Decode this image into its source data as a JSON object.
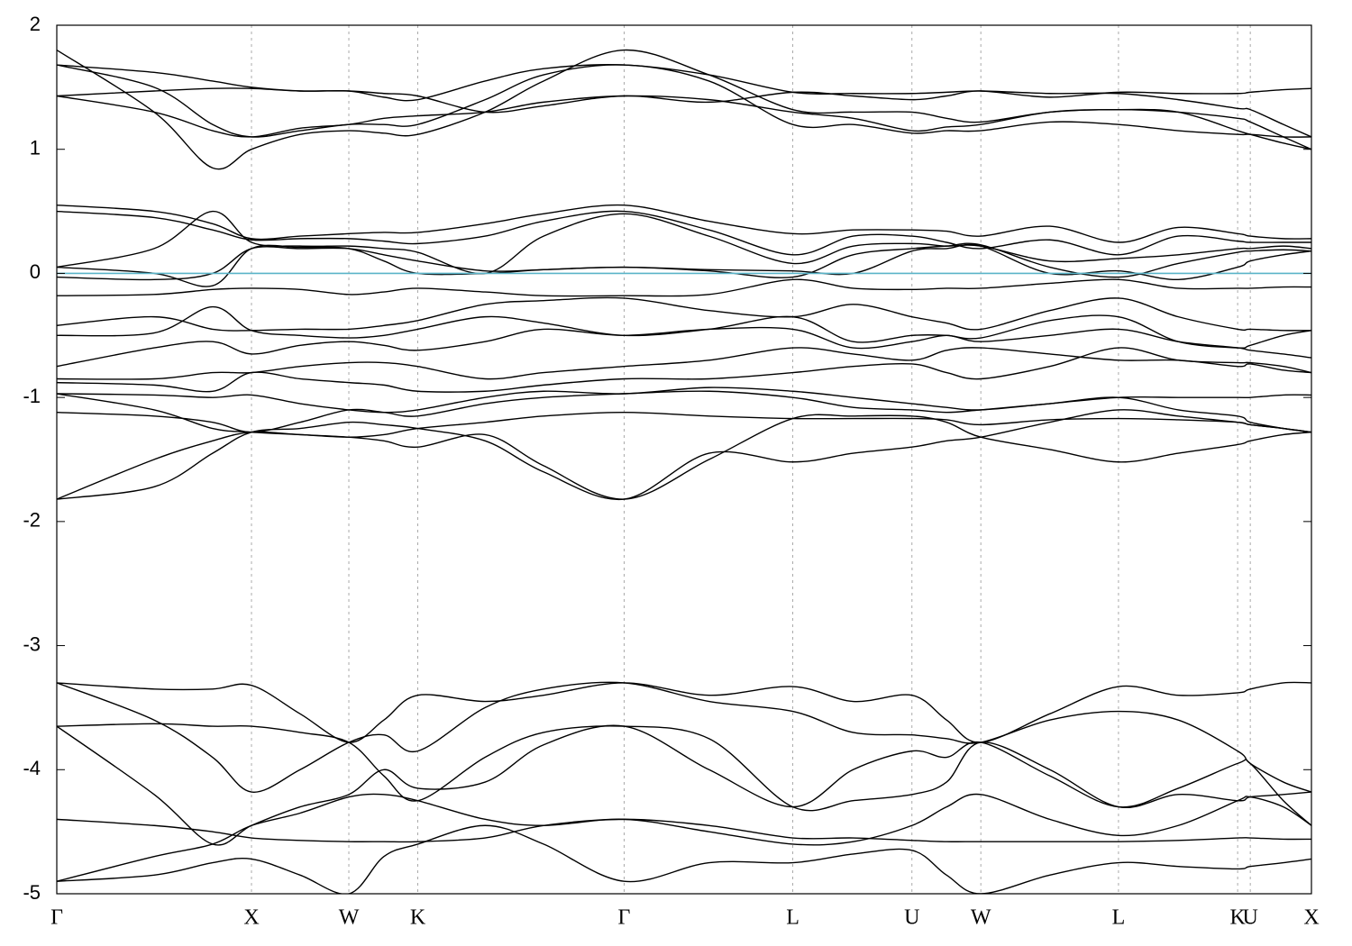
{
  "chart_data": {
    "type": "line",
    "x": [
      0,
      0.5,
      0.8,
      1,
      1.25,
      1.5,
      1.68,
      1.854,
      2.2,
      2.5,
      2.914,
      3.35,
      3.78,
      4.09,
      4.392,
      4.57,
      4.746,
      5.1,
      5.453,
      5.76,
      6.065,
      6.13,
      6.3,
      6.444
    ],
    "xlim": [
      0,
      6.444
    ],
    "xticks": [
      {
        "value": 0,
        "label": "Γ"
      },
      {
        "value": 1,
        "label": "X"
      },
      {
        "value": 1.5,
        "label": "W"
      },
      {
        "value": 1.854,
        "label": "K"
      },
      {
        "value": 2.914,
        "label": "Γ"
      },
      {
        "value": 3.78,
        "label": "L"
      },
      {
        "value": 4.392,
        "label": "U"
      },
      {
        "value": 4.746,
        "label": "W"
      },
      {
        "value": 5.453,
        "label": "L"
      },
      {
        "value": 6.065,
        "label": "K"
      },
      {
        "value": 6.13,
        "label": "U"
      },
      {
        "value": 6.444,
        "label": "X"
      }
    ],
    "ylim": [
      -5,
      2
    ],
    "yticks": [
      -5,
      -4,
      -3,
      -2,
      -1,
      0,
      1,
      2
    ],
    "x_grid": true,
    "fermi_level": 0,
    "fermi_color": "#5ab4c8",
    "series": [
      {
        "color": "#000000",
        "values": [
          1.8,
          1.3,
          0.85,
          1.0,
          1.12,
          1.15,
          1.13,
          1.12,
          1.3,
          1.55,
          1.8,
          1.6,
          1.32,
          1.3,
          1.3,
          1.25,
          1.22,
          1.3,
          1.32,
          1.3,
          1.15,
          1.12,
          1.05,
          1.0
        ]
      },
      {
        "color": "#000000",
        "values": [
          1.68,
          1.5,
          1.2,
          1.1,
          1.15,
          1.2,
          1.2,
          1.2,
          1.4,
          1.6,
          1.68,
          1.55,
          1.2,
          1.2,
          1.13,
          1.15,
          1.15,
          1.22,
          1.2,
          1.15,
          1.12,
          1.12,
          1.1,
          1.1
        ]
      },
      {
        "color": "#000000",
        "values": [
          1.43,
          1.3,
          1.15,
          1.1,
          1.17,
          1.2,
          1.25,
          1.27,
          1.3,
          1.38,
          1.43,
          1.4,
          1.3,
          1.25,
          1.15,
          1.18,
          1.2,
          1.3,
          1.32,
          1.3,
          1.25,
          1.22,
          1.1,
          1.0
        ]
      },
      {
        "color": "#000000",
        "values": [
          1.43,
          1.47,
          1.49,
          1.49,
          1.47,
          1.47,
          1.45,
          1.43,
          1.3,
          1.35,
          1.43,
          1.38,
          1.46,
          1.43,
          1.4,
          1.43,
          1.47,
          1.42,
          1.46,
          1.45,
          1.45,
          1.46,
          1.48,
          1.49
        ]
      },
      {
        "color": "#000000",
        "values": [
          1.68,
          1.62,
          1.55,
          1.5,
          1.47,
          1.47,
          1.42,
          1.4,
          1.55,
          1.65,
          1.68,
          1.6,
          1.46,
          1.45,
          1.45,
          1.46,
          1.47,
          1.45,
          1.45,
          1.4,
          1.33,
          1.32,
          1.2,
          1.1
        ]
      },
      {
        "color": "#000000",
        "values": [
          0.55,
          0.5,
          0.4,
          0.28,
          0.3,
          0.32,
          0.33,
          0.33,
          0.4,
          0.48,
          0.55,
          0.42,
          0.32,
          0.35,
          0.35,
          0.34,
          0.3,
          0.38,
          0.25,
          0.37,
          0.32,
          0.3,
          0.28,
          0.28
        ]
      },
      {
        "color": "#000000",
        "values": [
          0.5,
          0.45,
          0.35,
          0.27,
          0.28,
          0.28,
          0.26,
          0.24,
          0.3,
          0.42,
          0.5,
          0.35,
          0.15,
          0.3,
          0.3,
          0.25,
          0.2,
          0.27,
          0.15,
          0.3,
          0.26,
          0.25,
          0.25,
          0.25
        ]
      },
      {
        "color": "#000000",
        "values": [
          0.05,
          0.2,
          0.5,
          0.25,
          0.22,
          0.22,
          0.2,
          0.17,
          0.0,
          0.3,
          0.48,
          0.3,
          0.08,
          0.22,
          0.24,
          0.22,
          0.22,
          0.1,
          0.12,
          0.15,
          0.2,
          0.2,
          0.22,
          0.2
        ]
      },
      {
        "color": "#000000",
        "values": [
          -0.03,
          -0.05,
          0.0,
          0.2,
          0.2,
          0.2,
          0.15,
          0.1,
          0.02,
          0.03,
          0.05,
          0.02,
          -0.03,
          0.15,
          0.2,
          0.22,
          0.23,
          0.05,
          -0.03,
          0.08,
          0.17,
          0.18,
          0.19,
          0.18
        ]
      },
      {
        "color": "#000000",
        "values": [
          0.05,
          0.0,
          -0.1,
          0.2,
          0.21,
          0.2,
          0.1,
          0.0,
          0.0,
          0.03,
          0.05,
          0.03,
          0.02,
          0.0,
          0.18,
          0.2,
          0.22,
          0.0,
          0.02,
          -0.05,
          0.05,
          0.1,
          0.15,
          0.18
        ]
      },
      {
        "color": "#000000",
        "values": [
          -0.18,
          -0.17,
          -0.13,
          -0.12,
          -0.13,
          -0.17,
          -0.15,
          -0.12,
          -0.15,
          -0.18,
          -0.18,
          -0.17,
          -0.05,
          -0.12,
          -0.13,
          -0.12,
          -0.12,
          -0.08,
          -0.05,
          -0.12,
          -0.12,
          -0.12,
          -0.11,
          -0.11
        ]
      },
      {
        "color": "#000000",
        "values": [
          -0.42,
          -0.35,
          -0.45,
          -0.46,
          -0.45,
          -0.45,
          -0.42,
          -0.38,
          -0.25,
          -0.22,
          -0.2,
          -0.3,
          -0.35,
          -0.25,
          -0.35,
          -0.4,
          -0.45,
          -0.3,
          -0.2,
          -0.35,
          -0.45,
          -0.45,
          -0.46,
          -0.46
        ]
      },
      {
        "color": "#000000",
        "values": [
          -0.5,
          -0.48,
          -0.27,
          -0.46,
          -0.5,
          -0.52,
          -0.5,
          -0.45,
          -0.35,
          -0.4,
          -0.5,
          -0.45,
          -0.35,
          -0.55,
          -0.5,
          -0.5,
          -0.52,
          -0.38,
          -0.35,
          -0.55,
          -0.6,
          -0.58,
          -0.5,
          -0.46
        ]
      },
      {
        "color": "#000000",
        "values": [
          -0.75,
          -0.6,
          -0.55,
          -0.65,
          -0.58,
          -0.55,
          -0.58,
          -0.62,
          -0.55,
          -0.45,
          -0.5,
          -0.45,
          -0.45,
          -0.6,
          -0.55,
          -0.5,
          -0.55,
          -0.5,
          -0.45,
          -0.55,
          -0.6,
          -0.62,
          -0.65,
          -0.68
        ]
      },
      {
        "color": "#000000",
        "values": [
          -0.85,
          -0.85,
          -0.8,
          -0.8,
          -0.75,
          -0.72,
          -0.72,
          -0.75,
          -0.85,
          -0.8,
          -0.75,
          -0.7,
          -0.6,
          -0.65,
          -0.7,
          -0.62,
          -0.6,
          -0.65,
          -0.7,
          -0.7,
          -0.75,
          -0.73,
          -0.78,
          -0.8
        ]
      },
      {
        "color": "#000000",
        "values": [
          -0.88,
          -0.9,
          -0.95,
          -0.8,
          -0.85,
          -0.88,
          -0.9,
          -0.95,
          -0.95,
          -0.9,
          -0.85,
          -0.85,
          -0.8,
          -0.75,
          -0.73,
          -0.8,
          -0.85,
          -0.75,
          -0.6,
          -0.7,
          -0.72,
          -0.72,
          -0.75,
          -0.8
        ]
      },
      {
        "color": "#000000",
        "values": [
          -0.97,
          -0.98,
          -1.0,
          -0.98,
          -1.05,
          -1.1,
          -1.12,
          -1.1,
          -1.0,
          -0.95,
          -0.97,
          -0.92,
          -0.95,
          -1.0,
          -1.05,
          -1.08,
          -1.1,
          -1.05,
          -1.0,
          -1.0,
          -1.0,
          -1.0,
          -0.98,
          -0.98
        ]
      },
      {
        "color": "#000000",
        "values": [
          -1.12,
          -1.15,
          -1.2,
          -1.28,
          -1.2,
          -1.1,
          -1.12,
          -1.15,
          -1.05,
          -1.0,
          -0.97,
          -0.95,
          -1.0,
          -1.08,
          -1.1,
          -1.12,
          -1.1,
          -1.05,
          -1.0,
          -1.1,
          -1.15,
          -1.2,
          -1.25,
          -1.28
        ]
      },
      {
        "color": "#000000",
        "values": [
          -0.97,
          -1.1,
          -1.25,
          -1.28,
          -1.3,
          -1.32,
          -1.3,
          -1.25,
          -1.2,
          -1.15,
          -1.12,
          -1.15,
          -1.17,
          -1.17,
          -1.17,
          -1.18,
          -1.22,
          -1.18,
          -1.17,
          -1.18,
          -1.2,
          -1.22,
          -1.25,
          -1.28
        ]
      },
      {
        "color": "#000000",
        "values": [
          -1.82,
          -1.5,
          -1.35,
          -1.28,
          -1.3,
          -1.32,
          -1.35,
          -1.4,
          -1.3,
          -1.55,
          -1.82,
          -1.5,
          -1.17,
          -1.15,
          -1.15,
          -1.2,
          -1.32,
          -1.42,
          -1.52,
          -1.45,
          -1.38,
          -1.35,
          -1.3,
          -1.28
        ]
      },
      {
        "color": "#000000",
        "values": [
          -1.82,
          -1.72,
          -1.45,
          -1.28,
          -1.25,
          -1.2,
          -1.22,
          -1.25,
          -1.35,
          -1.6,
          -1.82,
          -1.45,
          -1.52,
          -1.45,
          -1.4,
          -1.35,
          -1.32,
          -1.2,
          -1.1,
          -1.15,
          -1.2,
          -1.22,
          -1.25,
          -1.28
        ]
      },
      {
        "color": "#000000",
        "values": [
          -3.3,
          -3.35,
          -3.35,
          -3.32,
          -3.55,
          -3.78,
          -3.6,
          -3.4,
          -3.45,
          -3.4,
          -3.3,
          -3.4,
          -3.33,
          -3.45,
          -3.4,
          -3.6,
          -3.78,
          -3.55,
          -3.33,
          -3.4,
          -3.38,
          -3.35,
          -3.3,
          -3.3
        ]
      },
      {
        "color": "#000000",
        "values": [
          -3.3,
          -3.6,
          -3.9,
          -4.18,
          -4.0,
          -3.78,
          -3.72,
          -3.85,
          -3.5,
          -3.35,
          -3.3,
          -3.45,
          -3.53,
          -3.7,
          -3.72,
          -3.75,
          -3.78,
          -3.6,
          -3.53,
          -3.6,
          -3.85,
          -3.95,
          -4.1,
          -4.18
        ]
      },
      {
        "color": "#000000",
        "values": [
          -3.65,
          -3.63,
          -3.65,
          -3.65,
          -3.7,
          -3.78,
          -4.05,
          -4.25,
          -3.9,
          -3.7,
          -3.65,
          -3.75,
          -4.3,
          -4.25,
          -4.2,
          -4.1,
          -3.78,
          -4.0,
          -4.3,
          -4.2,
          -4.25,
          -4.22,
          -4.2,
          -4.18
        ]
      },
      {
        "color": "#000000",
        "values": [
          -3.65,
          -4.2,
          -4.6,
          -4.45,
          -4.3,
          -4.2,
          -4.0,
          -4.15,
          -4.1,
          -3.8,
          -3.65,
          -4.0,
          -4.3,
          -4.0,
          -3.85,
          -3.9,
          -3.78,
          -4.05,
          -4.3,
          -4.15,
          -3.95,
          -3.95,
          -4.25,
          -4.45
        ]
      },
      {
        "color": "#000000",
        "values": [
          -4.4,
          -4.45,
          -4.5,
          -4.55,
          -4.57,
          -4.58,
          -4.58,
          -4.58,
          -4.55,
          -4.45,
          -4.4,
          -4.45,
          -4.55,
          -4.55,
          -4.57,
          -4.58,
          -4.58,
          -4.58,
          -4.58,
          -4.57,
          -4.55,
          -4.55,
          -4.56,
          -4.56
        ]
      },
      {
        "color": "#000000",
        "values": [
          -4.9,
          -4.7,
          -4.6,
          -4.45,
          -4.35,
          -4.22,
          -4.2,
          -4.25,
          -4.4,
          -4.45,
          -4.4,
          -4.5,
          -4.6,
          -4.58,
          -4.45,
          -4.3,
          -4.2,
          -4.4,
          -4.53,
          -4.45,
          -4.25,
          -4.22,
          -4.3,
          -4.45
        ]
      },
      {
        "color": "#000000",
        "values": [
          -4.9,
          -4.85,
          -4.75,
          -4.72,
          -4.85,
          -5.0,
          -4.7,
          -4.6,
          -4.45,
          -4.6,
          -4.9,
          -4.75,
          -4.75,
          -4.68,
          -4.65,
          -4.85,
          -5.0,
          -4.85,
          -4.75,
          -4.78,
          -4.8,
          -4.78,
          -4.75,
          -4.72
        ]
      }
    ]
  }
}
